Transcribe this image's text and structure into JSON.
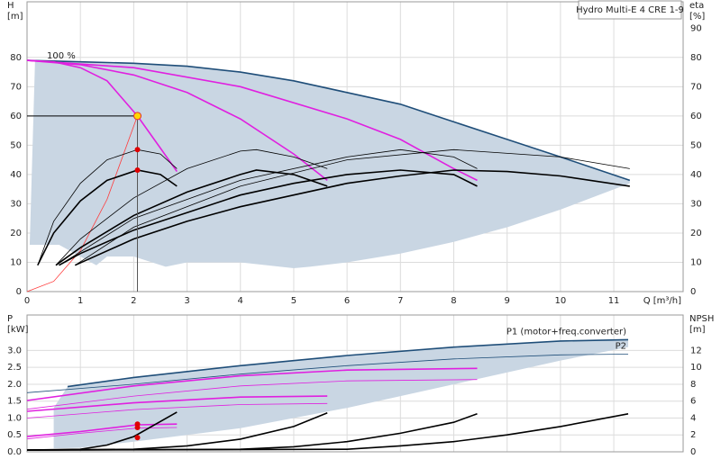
{
  "chart_data": [
    {
      "type": "line",
      "title": "Hydro Multi-E 4 CRE 1-9",
      "y_label": "H",
      "y_unit": "[m]",
      "y2_label": "eta",
      "y2_unit": "[%]",
      "x_label": "Q [m³/h]",
      "annotations": [
        "100 %"
      ],
      "grid": true,
      "xlim": [
        0,
        12.3
      ],
      "xticks": [
        0,
        1,
        2,
        3,
        4,
        5,
        6,
        7,
        8,
        9,
        10,
        11
      ],
      "ylim": [
        0,
        99
      ],
      "yticks": [
        0,
        10,
        20,
        30,
        40,
        50,
        60,
        70,
        80
      ],
      "y2lim": [
        0,
        99
      ],
      "y2ticks": [
        0,
        10,
        20,
        30,
        40,
        50,
        60,
        70,
        80,
        90
      ],
      "areas": [
        {
          "color": "#c9d6e3",
          "x": [
            0.05,
            0.15,
            0.5,
            1,
            2,
            3,
            4,
            5,
            6,
            7,
            8,
            9,
            10,
            11.3,
            11.3,
            10,
            9,
            8,
            7,
            6,
            5.3,
            5,
            4,
            3,
            2.6,
            2,
            1.5,
            1.3,
            1.1,
            0.6,
            0.05
          ],
          "values": [
            16,
            78.8,
            78.7,
            78.5,
            78,
            77,
            75,
            72,
            68,
            64,
            58,
            52,
            46,
            38,
            37,
            28,
            22,
            17,
            13,
            10,
            8.5,
            8,
            10,
            10,
            8.5,
            12,
            12,
            9,
            11,
            16,
            16
          ]
        }
      ],
      "series": [
        {
          "color": "#1f4e79",
          "line_style": "thick",
          "x": [
            0,
            1,
            2,
            3,
            4,
            5,
            6,
            7,
            8,
            9,
            10,
            11.3
          ],
          "values": [
            79,
            78.5,
            78,
            77,
            75,
            72,
            68,
            64,
            58,
            52,
            46,
            38
          ]
        },
        {
          "color": "#e020e0",
          "line_style": "thick",
          "x": [
            0,
            0.5,
            1,
            1.5,
            2.07,
            2.5,
            2.81
          ],
          "values": [
            79,
            78.5,
            76.5,
            72,
            60,
            49,
            41
          ]
        },
        {
          "color": "#e020e0",
          "line_style": "thick",
          "x": [
            0,
            1,
            2,
            3,
            4,
            5,
            5.63
          ],
          "values": [
            79,
            77.5,
            74,
            68,
            59,
            47,
            38
          ]
        },
        {
          "color": "#e020e0",
          "line_style": "thick",
          "x": [
            0,
            2,
            4,
            6,
            7,
            8,
            8.44
          ],
          "values": [
            79,
            76.5,
            70,
            59,
            52,
            42,
            38
          ]
        },
        {
          "color": "#ff3b3b",
          "line_style": "thin",
          "x": [
            0,
            0.5,
            1,
            1.5,
            2.07
          ],
          "values": [
            0,
            3.5,
            14,
            31.5,
            60
          ]
        },
        {
          "color": "#000000",
          "line_style": "thick",
          "axis": "y2",
          "x": [
            0.2,
            0.5,
            1,
            1.5,
            2.07,
            2.5,
            2.81
          ],
          "values": [
            9,
            20,
            31,
            38,
            41.5,
            40,
            36
          ]
        },
        {
          "color": "#000000",
          "line_style": "thin",
          "axis": "y2",
          "x": [
            0.2,
            0.5,
            1,
            1.5,
            2.07,
            2.5,
            2.81
          ],
          "values": [
            9,
            24,
            37,
            45,
            48.5,
            47,
            42
          ]
        },
        {
          "color": "#000000",
          "line_style": "thick",
          "axis": "y2",
          "x": [
            0.54,
            1,
            2,
            3,
            4,
            4.3,
            5,
            5.63
          ],
          "values": [
            9,
            15,
            26,
            34,
            40,
            41.5,
            40,
            36
          ]
        },
        {
          "color": "#000000",
          "line_style": "thin",
          "axis": "y2",
          "x": [
            0.54,
            1,
            2,
            3,
            4,
            4.3,
            5,
            5.63
          ],
          "values": [
            9,
            18,
            32,
            42,
            48,
            48.5,
            46,
            42
          ]
        },
        {
          "color": "#000000",
          "line_style": "thick",
          "axis": "y2",
          "x": [
            0.6,
            1,
            2,
            3,
            4,
            5,
            6,
            7,
            8,
            8.44
          ],
          "values": [
            9,
            13,
            21,
            27,
            33,
            37,
            40,
            41.5,
            40,
            36
          ]
        },
        {
          "color": "#000000",
          "line_style": "thin",
          "axis": "y2",
          "x": [
            0.6,
            2,
            4,
            6,
            7,
            8,
            8.44
          ],
          "values": [
            9,
            25,
            38,
            46,
            48.5,
            46,
            42
          ]
        },
        {
          "color": "#000000",
          "line_style": "thick",
          "axis": "y2",
          "x": [
            0.9,
            2,
            3,
            4,
            5,
            6,
            7,
            8,
            9,
            10,
            11.3
          ],
          "values": [
            9,
            18,
            24,
            29,
            33,
            37,
            39.5,
            41.5,
            41,
            39.5,
            36
          ]
        },
        {
          "color": "#000000",
          "line_style": "thin",
          "axis": "y2",
          "x": [
            0.9,
            2,
            4,
            6,
            8,
            10,
            11.3
          ],
          "values": [
            9,
            22,
            36,
            45,
            48.5,
            46,
            42
          ]
        }
      ],
      "points": [
        {
          "x": 2.07,
          "y": 60,
          "color": "#ffd700",
          "guides": true
        },
        {
          "x": 2.07,
          "y": 48.5,
          "color": "#e00000",
          "axis": "y2"
        },
        {
          "x": 2.07,
          "y": 41.5,
          "color": "#e00000",
          "axis": "y2"
        }
      ]
    },
    {
      "type": "line",
      "y_label": "P",
      "y_unit": "[kW]",
      "y2_label": "NPSH",
      "y2_unit": "[m]",
      "grid": true,
      "xlim": [
        0,
        12.3
      ],
      "ylim": [
        0,
        4.05
      ],
      "yticks": [
        {
          "value": 0,
          "label": "0.0"
        },
        0.5,
        {
          "value": 1,
          "label": "1.0"
        },
        1.5,
        {
          "value": 2,
          "label": "2.0"
        },
        2.5,
        {
          "value": 3,
          "label": "3.0"
        }
      ],
      "y2lim": [
        0,
        16.2
      ],
      "y2ticks": [
        0,
        2,
        4,
        6,
        8,
        10,
        12
      ],
      "areas": [
        {
          "color": "#c9d6e3",
          "x": [
            0.5,
            0.5,
            0.76,
            2,
            4,
            6,
            8,
            10,
            11.27,
            11.27,
            10,
            8,
            6,
            4,
            2,
            1,
            0.5
          ],
          "values": [
            0.1,
            1.3,
            1.93,
            2.2,
            2.55,
            2.85,
            3.1,
            3.28,
            3.32,
            3.1,
            2.7,
            2.0,
            1.3,
            0.7,
            0.3,
            0.12,
            0.1
          ]
        }
      ],
      "series": [
        {
          "name": "P1 (motor+freq.converter)",
          "color": "#1f4e79",
          "line_style": "thick",
          "x": [
            0.76,
            2,
            4,
            6,
            8,
            10,
            11.27
          ],
          "values": [
            1.93,
            2.2,
            2.55,
            2.85,
            3.1,
            3.28,
            3.32
          ]
        },
        {
          "name": "P2",
          "color": "#1f4e79",
          "line_style": "thin",
          "x": [
            0,
            2,
            4,
            6,
            8,
            10,
            11.27
          ],
          "values": [
            1.75,
            2.0,
            2.3,
            2.55,
            2.75,
            2.87,
            2.89
          ]
        },
        {
          "color": "#e020e0",
          "line_style": "thick",
          "x": [
            0,
            2,
            4,
            6,
            8.44
          ],
          "values": [
            1.52,
            1.95,
            2.25,
            2.42,
            2.47
          ]
        },
        {
          "color": "#e020e0",
          "line_style": "thin",
          "x": [
            0,
            2,
            4,
            6,
            8.44
          ],
          "values": [
            1.26,
            1.65,
            1.95,
            2.1,
            2.14
          ]
        },
        {
          "color": "#e020e0",
          "line_style": "thick",
          "x": [
            0,
            2,
            4,
            5.63
          ],
          "values": [
            1.2,
            1.45,
            1.62,
            1.65
          ]
        },
        {
          "color": "#e020e0",
          "line_style": "thin",
          "x": [
            0,
            2,
            4,
            5.63
          ],
          "values": [
            1.0,
            1.25,
            1.4,
            1.43
          ]
        },
        {
          "color": "#e020e0",
          "line_style": "thick",
          "x": [
            0,
            1,
            2.07,
            2.81
          ],
          "values": [
            0.45,
            0.6,
            0.8,
            0.82
          ]
        },
        {
          "color": "#e020e0",
          "line_style": "thin",
          "x": [
            0,
            1,
            2.07,
            2.81
          ],
          "values": [
            0.38,
            0.55,
            0.7,
            0.72
          ]
        },
        {
          "color": "#000000",
          "line_style": "thick",
          "axis": "y2",
          "x": [
            0,
            1,
            1.5,
            2,
            2.81
          ],
          "values": [
            0.2,
            0.3,
            0.8,
            1.8,
            4.7
          ]
        },
        {
          "color": "#000000",
          "line_style": "thick",
          "axis": "y2",
          "x": [
            0,
            2,
            3,
            4,
            5,
            5.63
          ],
          "values": [
            0.2,
            0.3,
            0.7,
            1.5,
            3,
            4.6
          ]
        },
        {
          "color": "#000000",
          "line_style": "thick",
          "axis": "y2",
          "x": [
            0,
            4,
            5,
            6,
            7,
            8,
            8.44
          ],
          "values": [
            0.2,
            0.3,
            0.6,
            1.2,
            2.2,
            3.5,
            4.5
          ]
        },
        {
          "color": "#000000",
          "line_style": "thick",
          "axis": "y2",
          "x": [
            0,
            6,
            7,
            8,
            9,
            10,
            11.27
          ],
          "values": [
            0.2,
            0.3,
            0.7,
            1.2,
            2,
            3,
            4.5
          ]
        }
      ],
      "points": [
        {
          "x": 2.07,
          "y": 0.82,
          "color": "#e00000"
        },
        {
          "x": 2.07,
          "y": 0.72,
          "color": "#e00000"
        },
        {
          "x": 2.07,
          "y": 0.42,
          "color": "#e00000"
        }
      ]
    }
  ]
}
